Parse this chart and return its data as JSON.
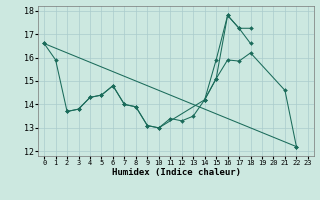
{
  "xlabel": "Humidex (Indice chaleur)",
  "background_color": "#cce8e0",
  "grid_color": "#aacccc",
  "line_color": "#1a6b5a",
  "xlim": [
    -0.5,
    23.5
  ],
  "ylim": [
    11.8,
    18.2
  ],
  "xticks": [
    0,
    1,
    2,
    3,
    4,
    5,
    6,
    7,
    8,
    9,
    10,
    11,
    12,
    13,
    14,
    15,
    16,
    17,
    18,
    19,
    20,
    21,
    22,
    23
  ],
  "yticks": [
    12,
    13,
    14,
    15,
    16,
    17,
    18
  ],
  "series": [
    {
      "x": [
        0,
        1,
        2,
        3,
        4,
        5,
        6,
        7,
        8,
        9,
        10,
        11,
        12,
        13,
        14,
        15,
        16,
        17,
        18,
        21,
        22
      ],
      "y": [
        16.6,
        15.9,
        13.7,
        13.8,
        14.3,
        14.4,
        14.8,
        14.0,
        13.9,
        13.1,
        13.0,
        13.4,
        13.3,
        13.5,
        14.2,
        15.1,
        15.9,
        15.85,
        16.2,
        14.6,
        12.2
      ]
    },
    {
      "x": [
        2,
        3,
        4,
        5,
        6,
        7,
        8,
        9,
        10,
        14,
        15,
        16,
        17,
        18
      ],
      "y": [
        13.7,
        13.8,
        14.3,
        14.4,
        14.8,
        14.0,
        13.9,
        13.1,
        13.0,
        14.2,
        15.9,
        17.8,
        17.25,
        17.25
      ]
    },
    {
      "x": [
        14,
        15,
        16,
        17,
        18
      ],
      "y": [
        14.2,
        15.1,
        17.8,
        17.25,
        16.6
      ]
    },
    {
      "x": [
        0,
        22
      ],
      "y": [
        16.6,
        12.2
      ]
    }
  ]
}
